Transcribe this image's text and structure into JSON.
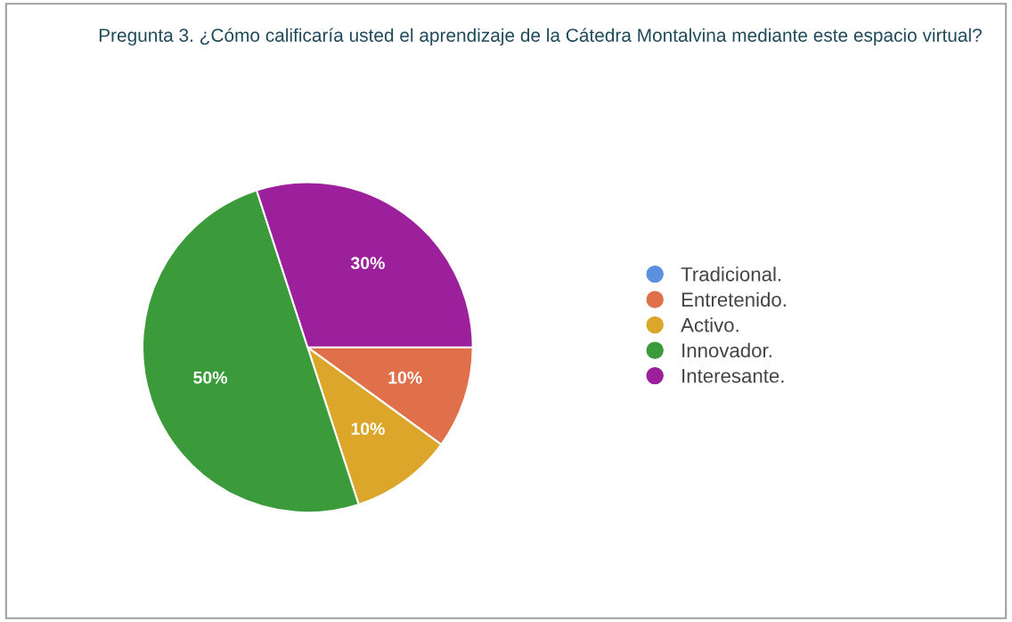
{
  "chart_data": {
    "type": "pie",
    "title": "Pregunta 3. ¿Cómo calificaría usted el aprendizaje de la Cátedra Montalvina mediante este espacio virtual?",
    "categories": [
      "Tradicional.",
      "Entretenido.",
      "Activo.",
      "Innovador.",
      "Interesante."
    ],
    "values": [
      0,
      10,
      10,
      50,
      30
    ],
    "value_labels": [
      null,
      "10%",
      "10%",
      "50%",
      "30%"
    ],
    "colors": [
      "#5b8fe0",
      "#e0704a",
      "#dba629",
      "#3b9b3b",
      "#9c1f9c"
    ],
    "legend": "right"
  }
}
